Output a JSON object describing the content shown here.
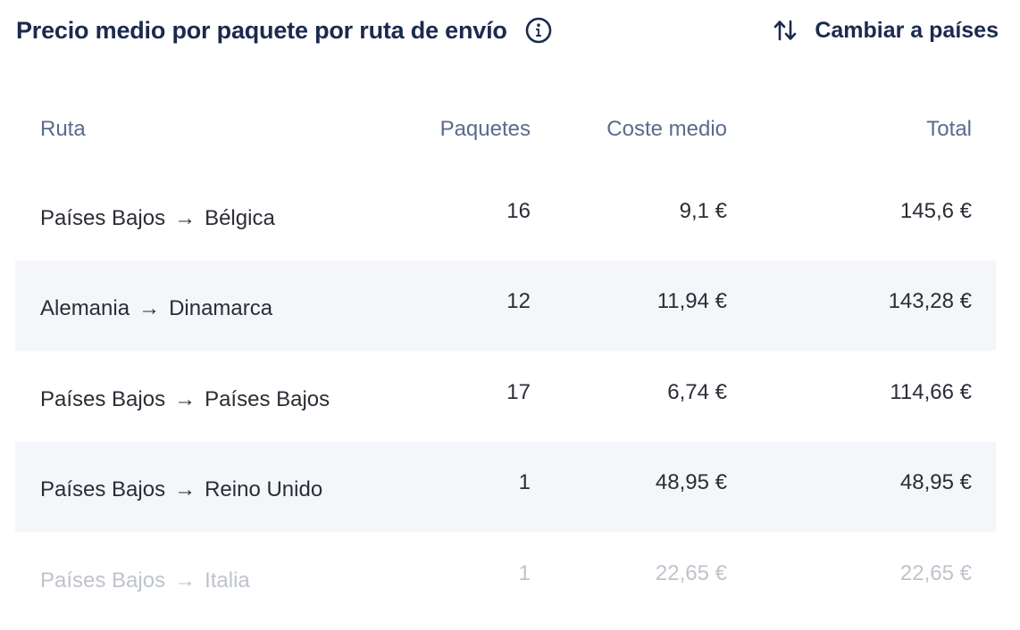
{
  "header": {
    "title": "Precio medio por paquete por ruta de envío",
    "info_icon": "info-icon",
    "switch_icon": "swap-vertical-icon",
    "switch_label": "Cambiar a países"
  },
  "table": {
    "columns": {
      "route": "Ruta",
      "packages": "Paquetes",
      "avg_cost": "Coste medio",
      "total": "Total"
    },
    "arrow": "→",
    "rows": [
      {
        "from": "Países Bajos",
        "to": "Bélgica",
        "packages": "16",
        "avg_cost": "9,1 €",
        "total": "145,6 €"
      },
      {
        "from": "Alemania",
        "to": "Dinamarca",
        "packages": "12",
        "avg_cost": "11,94 €",
        "total": "143,28 €"
      },
      {
        "from": "Países Bajos",
        "to": "Países Bajos",
        "packages": "17",
        "avg_cost": "6,74 €",
        "total": "114,66 €"
      },
      {
        "from": "Países Bajos",
        "to": "Reino Unido",
        "packages": "1",
        "avg_cost": "48,95 €",
        "total": "48,95 €"
      },
      {
        "from": "Países Bajos",
        "to": "Italia",
        "packages": "1",
        "avg_cost": "22,65 €",
        "total": "22,65 €"
      }
    ]
  },
  "colors": {
    "title": "#1b2a4e",
    "header_text": "#5a6b8c",
    "row_text": "#2a2d35",
    "alt_row_bg": "#f5f6fa",
    "faded_text": "#bfc3cc"
  }
}
